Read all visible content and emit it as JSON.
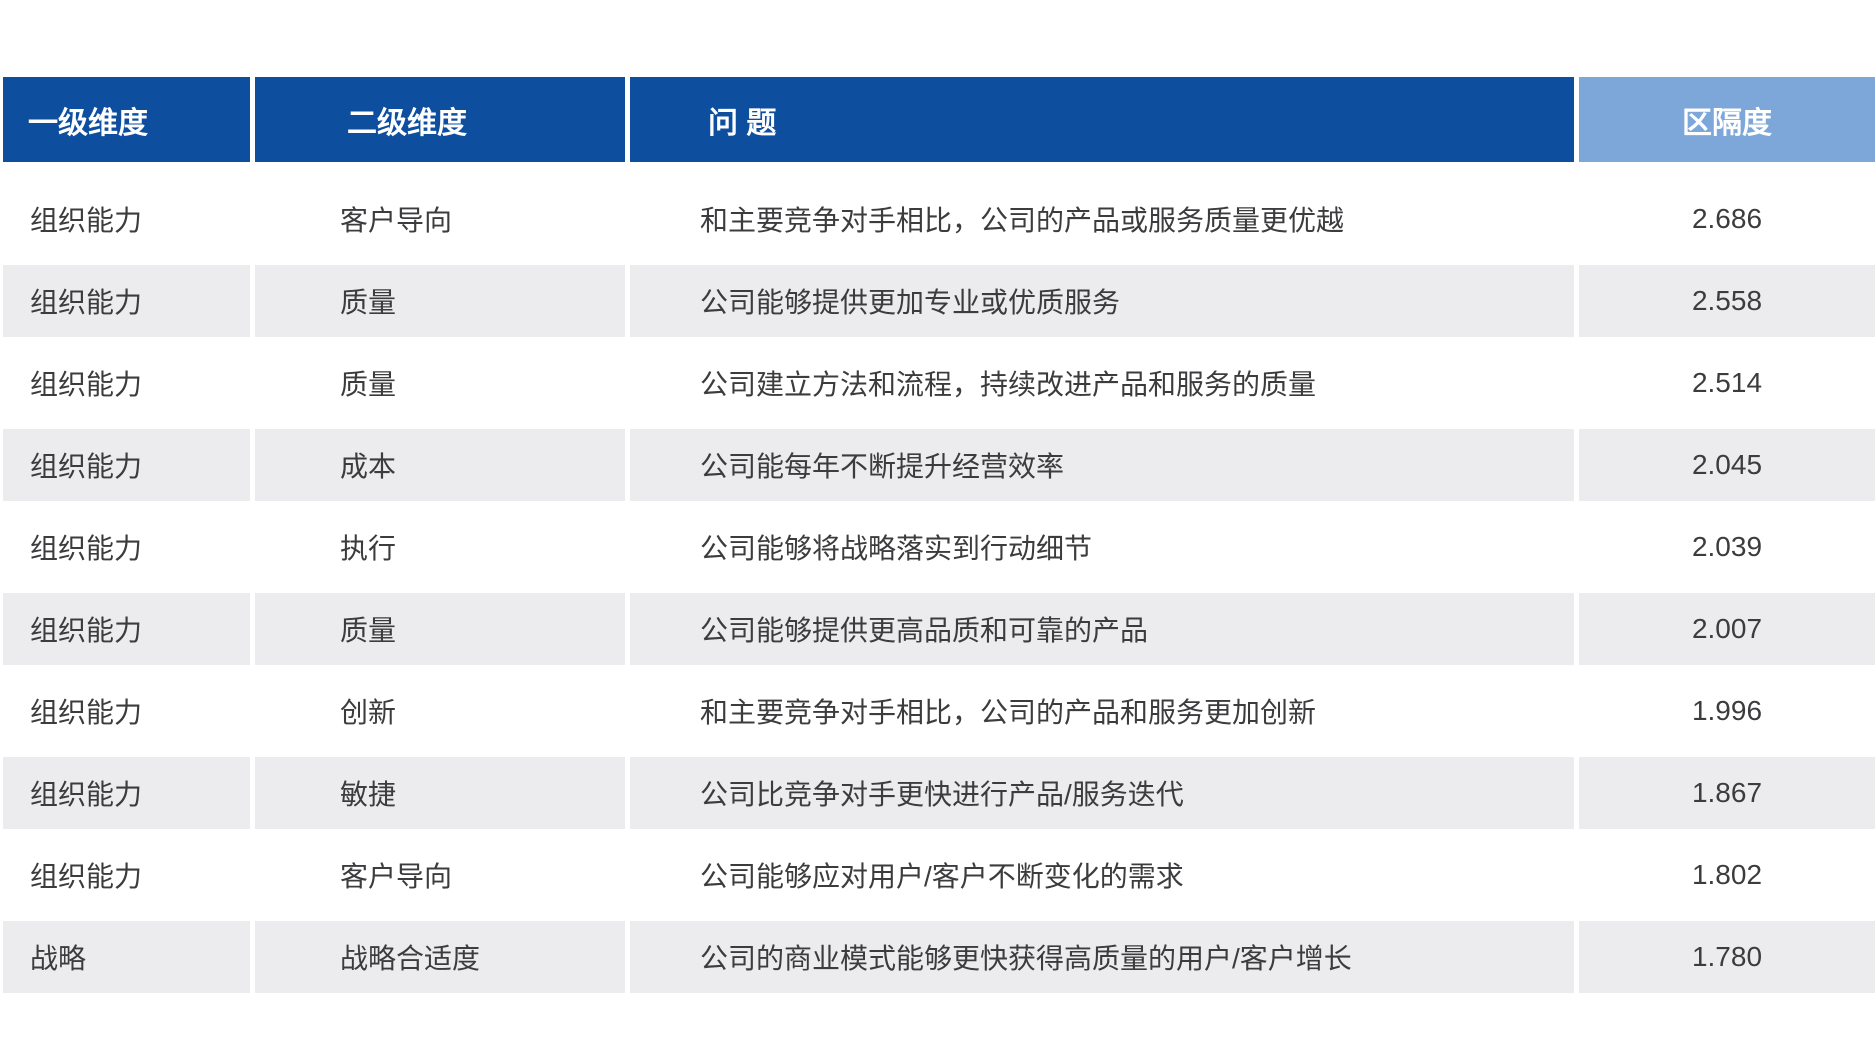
{
  "colors": {
    "header_bg": "#0d4e9f",
    "header_last_bg": "#7da6d9",
    "stripe_bg": "#ececee",
    "body_text": "#3c3c3e",
    "header_text": "#ffffff"
  },
  "chart_data": {
    "type": "table",
    "columns": [
      "一级维度",
      "二级维度",
      "问 题",
      "区隔度"
    ],
    "rows": [
      {
        "level1": "组织能力",
        "level2": "客户导向",
        "question": "和主要竞争对手相比，公司的产品或服务质量更优越",
        "score": "2.686"
      },
      {
        "level1": "组织能力",
        "level2": "质量",
        "question": "公司能够提供更加专业或优质服务",
        "score": "2.558"
      },
      {
        "level1": "组织能力",
        "level2": "质量",
        "question": "公司建立方法和流程，持续改进产品和服务的质量",
        "score": "2.514"
      },
      {
        "level1": "组织能力",
        "level2": "成本",
        "question": "公司能每年不断提升经营效率",
        "score": "2.045"
      },
      {
        "level1": "组织能力",
        "level2": "执行",
        "question": "公司能够将战略落实到行动细节",
        "score": "2.039"
      },
      {
        "level1": "组织能力",
        "level2": "质量",
        "question": "公司能够提供更高品质和可靠的产品",
        "score": "2.007"
      },
      {
        "level1": "组织能力",
        "level2": "创新",
        "question": "和主要竞争对手相比，公司的产品和服务更加创新",
        "score": "1.996"
      },
      {
        "level1": "组织能力",
        "level2": "敏捷",
        "question": "公司比竞争对手更快进行产品/服务迭代",
        "score": "1.867"
      },
      {
        "level1": "组织能力",
        "level2": "客户导向",
        "question": "公司能够应对用户/客户不断变化的需求",
        "score": "1.802"
      },
      {
        "level1": "战略",
        "level2": "战略合适度",
        "question": "公司的商业模式能够更快获得高质量的用户/客户增长",
        "score": "1.780"
      }
    ],
    "layout": {
      "striped": true,
      "stripe_rows": "even",
      "value_column_align": "center"
    }
  }
}
